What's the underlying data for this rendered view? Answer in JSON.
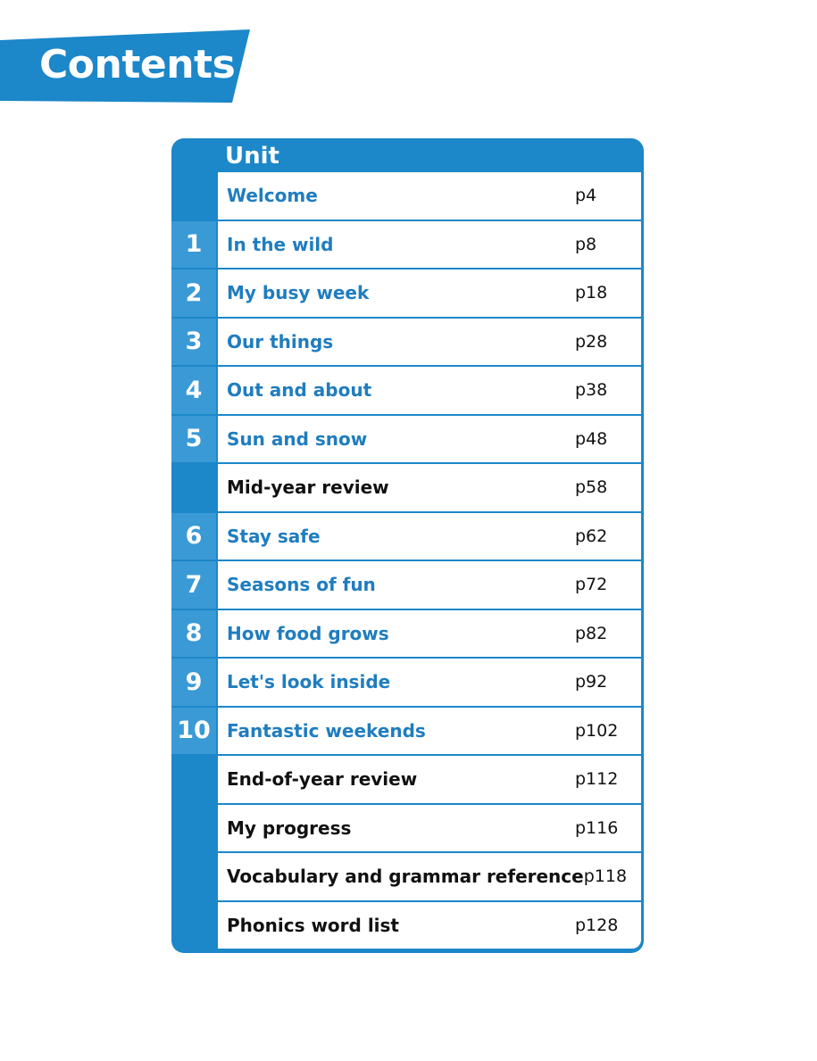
{
  "header": {
    "title": "Contents"
  },
  "table": {
    "header_label": "Unit",
    "rows": [
      {
        "unit": "",
        "title": "Welcome",
        "page": "p4",
        "style": "blue",
        "numbered": false
      },
      {
        "unit": "1",
        "title": "In the wild",
        "page": "p8",
        "style": "blue",
        "numbered": true
      },
      {
        "unit": "2",
        "title": "My busy week",
        "page": "p18",
        "style": "blue",
        "numbered": true
      },
      {
        "unit": "3",
        "title": "Our things",
        "page": "p28",
        "style": "blue",
        "numbered": true
      },
      {
        "unit": "4",
        "title": "Out and about",
        "page": "p38",
        "style": "blue",
        "numbered": true
      },
      {
        "unit": "5",
        "title": "Sun and snow",
        "page": "p48",
        "style": "blue",
        "numbered": true
      },
      {
        "unit": "",
        "title": "Mid-year review",
        "page": "p58",
        "style": "black",
        "numbered": false
      },
      {
        "unit": "6",
        "title": "Stay safe",
        "page": "p62",
        "style": "blue",
        "numbered": true
      },
      {
        "unit": "7",
        "title": "Seasons of fun",
        "page": "p72",
        "style": "blue",
        "numbered": true
      },
      {
        "unit": "8",
        "title": "How food grows",
        "page": "p82",
        "style": "blue",
        "numbered": true
      },
      {
        "unit": "9",
        "title": "Let's look inside",
        "page": "p92",
        "style": "blue",
        "numbered": true
      },
      {
        "unit": "10",
        "title": "Fantastic weekends",
        "page": "p102",
        "style": "blue",
        "numbered": true
      },
      {
        "unit": "",
        "title": "End-of-year review",
        "page": "p112",
        "style": "black",
        "numbered": false
      },
      {
        "unit": "",
        "title": "My progress",
        "page": "p116",
        "style": "black",
        "numbered": false
      },
      {
        "unit": "",
        "title": "Vocabulary and grammar reference",
        "page": "p118",
        "style": "black",
        "numbered": false
      },
      {
        "unit": "",
        "title": "Phonics word list",
        "page": "p128",
        "style": "black",
        "numbered": false
      }
    ]
  },
  "colors": {
    "brand_blue": "#1c87c9",
    "unit_cell_blue": "#3a9ad6",
    "title_blue": "#1f7dbf",
    "title_black": "#111111"
  }
}
